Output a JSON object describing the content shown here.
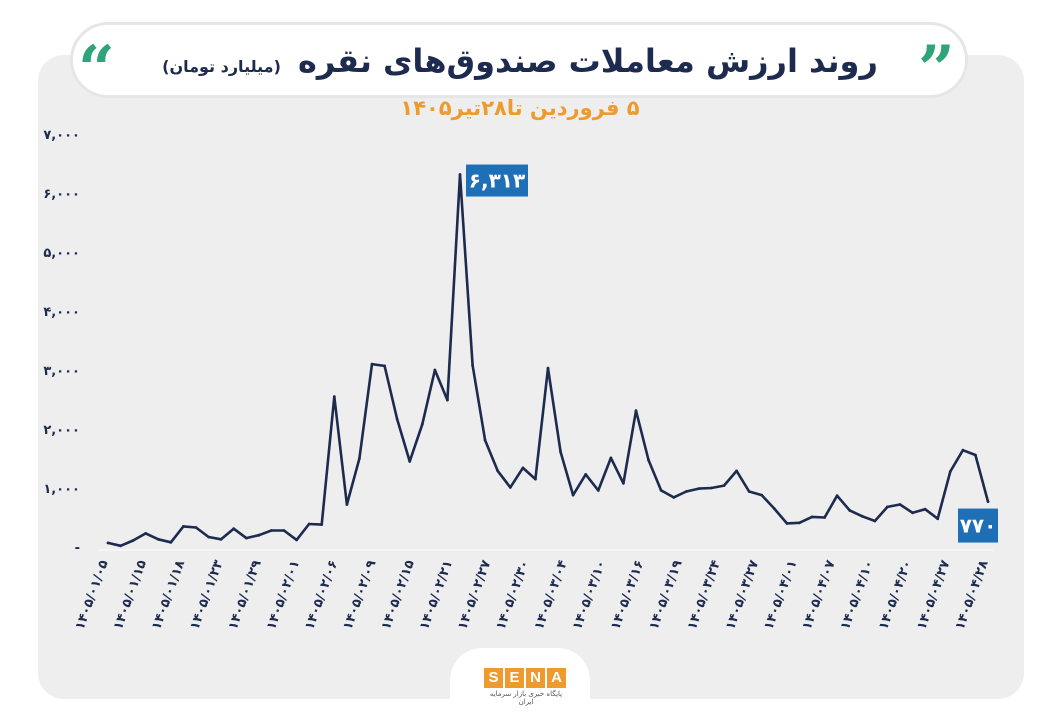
{
  "header": {
    "title": "روند ارزش معاملات صندوق‌های نقره",
    "unit": "(میلیارد تومان)",
    "subtitle": "۵ فروردین تا۲۸تیر۱۴۰۵"
  },
  "brand": {
    "letters": [
      "S",
      "E",
      "N",
      "A"
    ],
    "tagline": "پایگاه خبری بازار سرمایه ایران",
    "accent": "#ef9a2d",
    "line_color": "#1d2b4f",
    "callout_color": "#1e6fb5",
    "quote_color": "#2fa37a"
  },
  "chart_data": {
    "type": "line",
    "title": "روند ارزش معاملات صندوق‌های نقره",
    "subtitle": "۵ فروردین تا۲۸تیر۱۴۰۵",
    "ylabel": "(میلیارد تومان)",
    "ylim": [
      0,
      7000
    ],
    "yticks": [
      "-",
      "۱,۰۰۰",
      "۲,۰۰۰",
      "۳,۰۰۰",
      "۴,۰۰۰",
      "۵,۰۰۰",
      "۶,۰۰۰",
      "۷,۰۰۰"
    ],
    "xtick_labels": [
      "۱۴۰۵/۰۱/۰۵",
      "۱۴۰۵/۰۱/۱۵",
      "۱۴۰۵/۰۱/۱۸",
      "۱۴۰۵/۰۱/۲۳",
      "۱۴۰۵/۰۱/۲۹",
      "۱۴۰۵/۰۲/۰۱",
      "۱۴۰۵/۰۲/۰۶",
      "۱۴۰۵/۰۲/۰۹",
      "۱۴۰۵/۰۲/۱۵",
      "۱۴۰۵/۰۲/۲۱",
      "۱۴۰۵/۰۲/۲۷",
      "۱۴۰۵/۰۲/۳۰",
      "۱۴۰۵/۰۳/۰۴",
      "۱۴۰۵/۰۳/۱۰",
      "۱۴۰۵/۰۳/۱۶",
      "۱۴۰۵/۰۳/۱۹",
      "۱۴۰۵/۰۳/۲۴",
      "۱۴۰۵/۰۳/۲۷",
      "۱۴۰۵/۰۴/۰۱",
      "۱۴۰۵/۰۴/۰۷",
      "۱۴۰۵/۰۴/۱۰",
      "۱۴۰۵/۰۴/۲۰",
      "۱۴۰۵/۰۴/۲۷",
      "۱۴۰۵/۰۴/۲۸"
    ],
    "grid": false,
    "series": [
      {
        "values": [
          70,
          20,
          110,
          230,
          130,
          80,
          350,
          330,
          170,
          130,
          310,
          150,
          200,
          280,
          280,
          120,
          390,
          380,
          2550,
          720,
          1500,
          3100,
          3070,
          2170,
          1450,
          2080,
          3000,
          2490,
          6313,
          3080,
          1810,
          1290,
          1010,
          1340,
          1150,
          3030,
          1610,
          880,
          1230,
          960,
          1510,
          1080,
          2310,
          1470,
          960,
          840,
          940,
          990,
          1000,
          1040,
          1290,
          940,
          880,
          650,
          400,
          410,
          510,
          500,
          870,
          620,
          520,
          440,
          680,
          720,
          580,
          640,
          480,
          1280,
          1640,
          1560,
          770
        ]
      }
    ],
    "annotations": [
      {
        "label": "۶,۳۱۳",
        "index": 28
      },
      {
        "label": "۷۷۰",
        "index": 70
      }
    ]
  }
}
